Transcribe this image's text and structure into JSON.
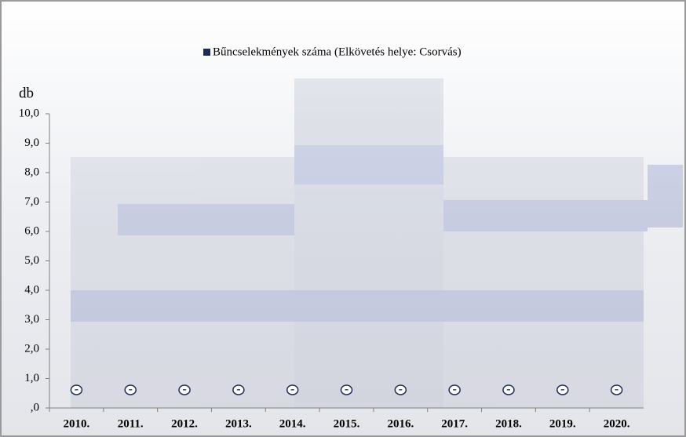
{
  "chart_data": {
    "type": "bar",
    "legend": "Bűncselekmények száma (Elkövetés helye: Csorvás)",
    "y_label": "db",
    "categories": [
      "2010.",
      "2011.",
      "2012.",
      "2013.",
      "2014.",
      "2015.",
      "2016.",
      "2017.",
      "2018.",
      "2019.",
      "2020."
    ],
    "values": [
      0,
      0,
      0,
      0,
      0,
      0,
      0,
      0,
      0,
      0,
      0
    ],
    "value_labels": [
      "-",
      "-",
      "-",
      "-",
      "-",
      "-",
      "-",
      "-",
      "-",
      "-",
      "-"
    ],
    "color": "#1f2a55",
    "ylim": [
      0,
      10
    ],
    "yticks": [
      {
        "value": 0,
        "label": ",0"
      },
      {
        "value": 1,
        "label": "1,0"
      },
      {
        "value": 2,
        "label": "2,0"
      },
      {
        "value": 3,
        "label": "3,0"
      },
      {
        "value": 4,
        "label": "4,0"
      },
      {
        "value": 5,
        "label": "5,0"
      },
      {
        "value": 6,
        "label": "6,0"
      },
      {
        "value": 7,
        "label": "7,0"
      },
      {
        "value": 8,
        "label": "8,0"
      },
      {
        "value": 9,
        "label": "9,0"
      },
      {
        "value": 10,
        "label": "10,0"
      }
    ]
  }
}
